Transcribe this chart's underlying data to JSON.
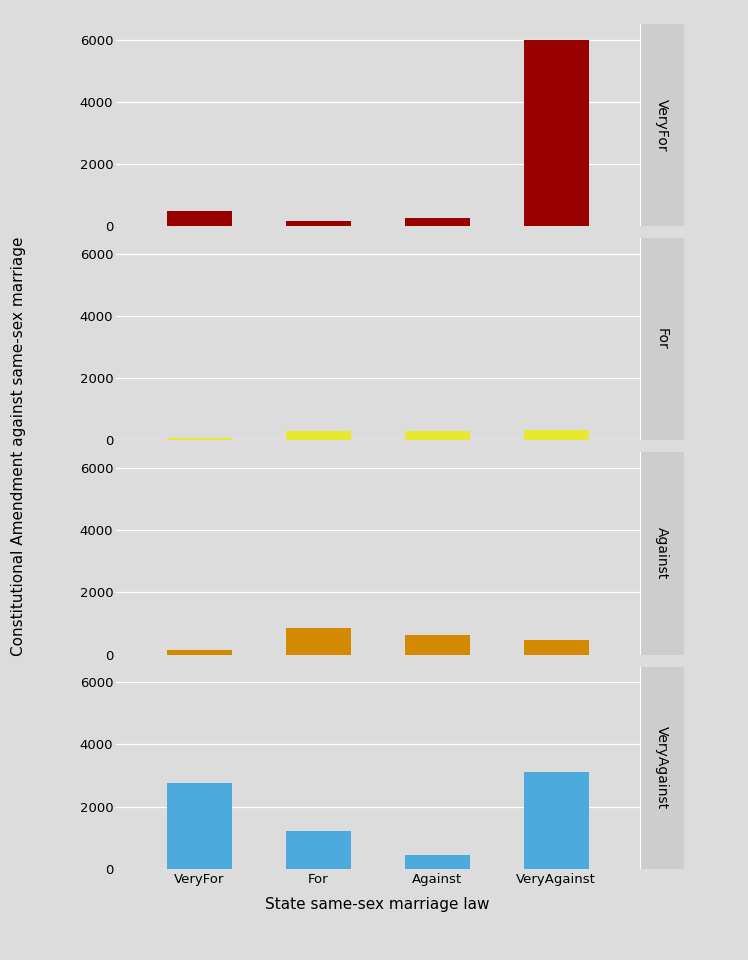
{
  "categories": [
    "VeryFor",
    "For",
    "Against",
    "VeryAgainst"
  ],
  "panels": [
    {
      "label": "VeryFor",
      "color": "#990000",
      "values": [
        500,
        150,
        250,
        6000
      ]
    },
    {
      "label": "For",
      "color": "#E8E830",
      "values": [
        75,
        310,
        310,
        335
      ]
    },
    {
      "label": "Against",
      "color": "#D48A00",
      "values": [
        150,
        850,
        625,
        480
      ]
    },
    {
      "label": "VeryAgainst",
      "color": "#4DAADD",
      "values": [
        2750,
        1200,
        450,
        3100
      ]
    }
  ],
  "ylim": [
    0,
    6500
  ],
  "yticks": [
    0,
    2000,
    4000,
    6000
  ],
  "xlabel": "State same-sex marriage law",
  "ylabel": "Constitutional Amendment against same-sex marriage",
  "panel_bg": "#DCDCDC",
  "strip_bg": "#CDCDCD",
  "fig_bg": "#DCDCDC",
  "grid_color": "#FFFFFF",
  "label_fontsize": 11,
  "tick_fontsize": 9.5,
  "strip_fontsize": 10,
  "bar_width": 0.55
}
